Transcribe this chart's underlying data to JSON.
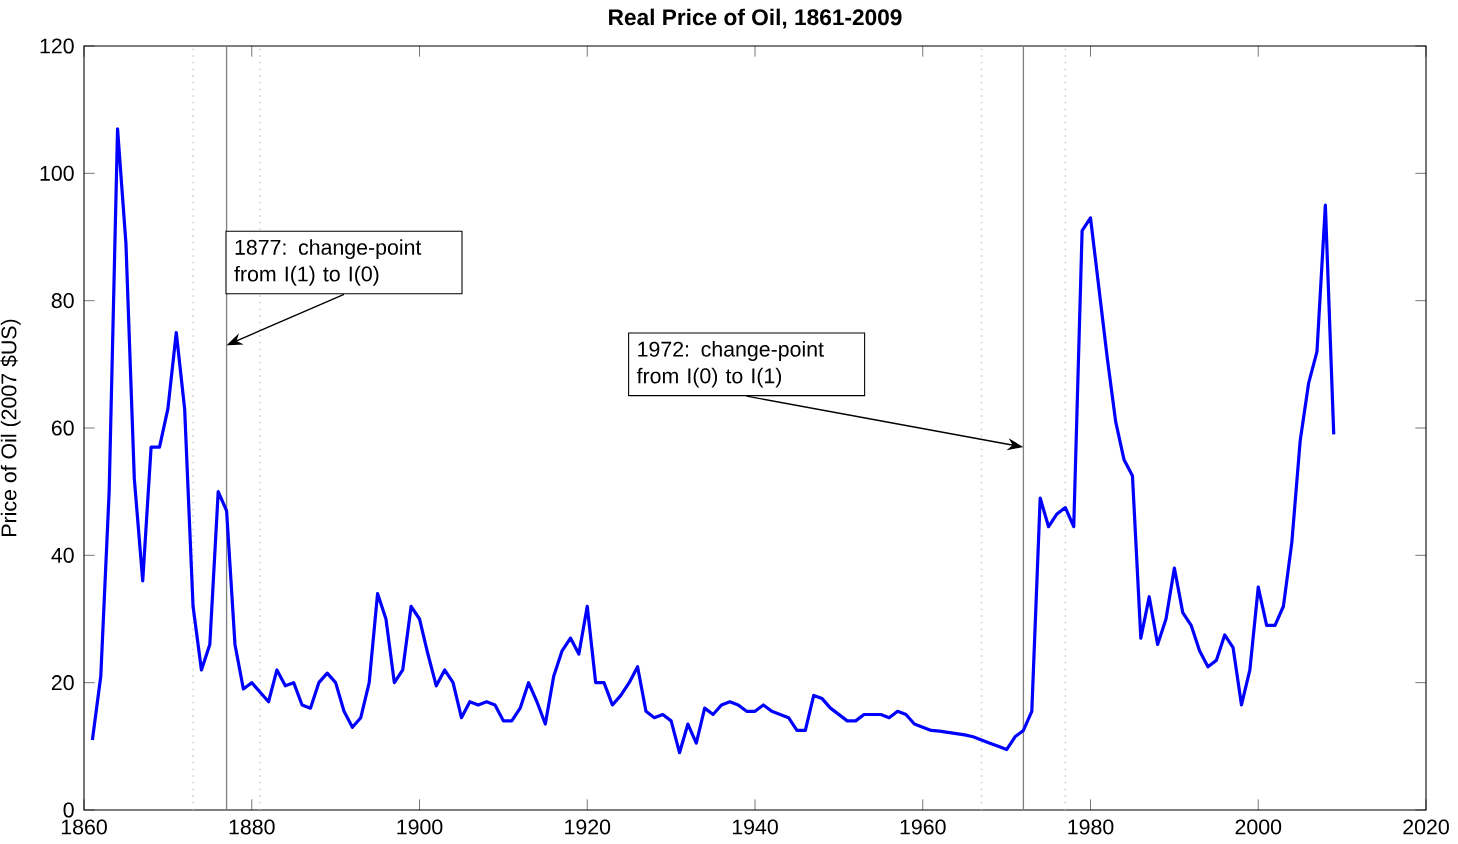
{
  "chart_data": {
    "type": "line",
    "title": "Real Price of Oil, 1861-2009",
    "ylabel": "Price of Oil (2007 $US)",
    "x": [
      1861,
      1862,
      1863,
      1864,
      1865,
      1866,
      1867,
      1868,
      1869,
      1870,
      1871,
      1872,
      1873,
      1874,
      1875,
      1876,
      1877,
      1878,
      1879,
      1880,
      1881,
      1882,
      1883,
      1884,
      1885,
      1886,
      1887,
      1888,
      1889,
      1890,
      1891,
      1892,
      1893,
      1894,
      1895,
      1896,
      1897,
      1898,
      1899,
      1900,
      1901,
      1902,
      1903,
      1904,
      1905,
      1906,
      1907,
      1908,
      1909,
      1910,
      1911,
      1912,
      1913,
      1914,
      1915,
      1916,
      1917,
      1918,
      1919,
      1920,
      1921,
      1922,
      1923,
      1924,
      1925,
      1926,
      1927,
      1928,
      1929,
      1930,
      1931,
      1932,
      1933,
      1934,
      1935,
      1936,
      1937,
      1938,
      1939,
      1940,
      1941,
      1942,
      1943,
      1944,
      1945,
      1946,
      1947,
      1948,
      1949,
      1950,
      1951,
      1952,
      1953,
      1954,
      1955,
      1956,
      1957,
      1958,
      1959,
      1960,
      1961,
      1962,
      1963,
      1964,
      1965,
      1966,
      1967,
      1968,
      1969,
      1970,
      1971,
      1972,
      1973,
      1974,
      1975,
      1976,
      1977,
      1978,
      1979,
      1980,
      1981,
      1982,
      1983,
      1984,
      1985,
      1986,
      1987,
      1988,
      1989,
      1990,
      1991,
      1992,
      1993,
      1994,
      1995,
      1996,
      1997,
      1998,
      1999,
      2000,
      2001,
      2002,
      2003,
      2004,
      2005,
      2006,
      2007,
      2008,
      2009
    ],
    "series": [
      {
        "color": "#0000ff",
        "values": [
          11,
          21,
          50,
          107,
          89,
          52,
          36,
          57,
          57,
          63,
          75,
          63,
          32,
          22,
          26,
          50,
          47,
          26,
          19,
          20,
          18.5,
          17,
          22,
          19.5,
          20,
          16.5,
          16,
          20,
          21.5,
          20,
          15.5,
          13,
          14.5,
          20,
          34,
          30,
          20,
          22,
          32,
          30,
          24.5,
          19.5,
          22,
          20,
          14.5,
          17,
          16.5,
          17,
          16.5,
          14,
          14,
          16,
          20,
          17,
          13.5,
          21,
          25,
          27,
          24.5,
          32,
          20,
          20,
          16.5,
          18,
          20,
          22.5,
          15.5,
          14.5,
          15,
          14,
          9,
          13.5,
          10.5,
          16,
          15,
          16.5,
          17,
          16.5,
          15.5,
          15.5,
          16.5,
          15.5,
          15,
          14.5,
          12.5,
          12.5,
          18,
          17.5,
          16,
          15,
          14,
          14,
          15,
          15,
          15,
          14.5,
          15.5,
          15,
          13.5,
          13,
          12.5,
          12.4,
          12.2,
          12,
          11.8,
          11.5,
          11,
          10.5,
          10,
          9.5,
          11.5,
          12.5,
          15.5,
          49,
          44.5,
          46.5,
          47.5,
          44.5,
          91,
          93,
          82,
          71,
          61,
          55,
          52.5,
          27,
          33.5,
          26,
          30,
          38,
          31,
          29,
          25,
          22.5,
          23.5,
          27.5,
          25.5,
          16.5,
          22,
          35,
          29,
          29,
          32,
          42,
          58,
          67,
          72,
          95,
          59
        ]
      }
    ],
    "xlim": [
      1860,
      2020
    ],
    "xticks": [
      1860,
      1880,
      1900,
      1920,
      1940,
      1960,
      1980,
      2000,
      2020
    ],
    "ylim": [
      0,
      120
    ],
    "yticks": [
      0,
      20,
      40,
      60,
      80,
      100,
      120
    ],
    "grid": false,
    "marker": "none",
    "line_style": "solid",
    "ref_lines": [
      {
        "axis": "x",
        "value": 1877,
        "color": "#808080",
        "line_style": "solid"
      },
      {
        "axis": "x",
        "value": 1972,
        "color": "#808080",
        "line_style": "solid"
      },
      {
        "axis": "x",
        "value": 1873,
        "color": "#c0c0c0",
        "line_style": "dotted"
      },
      {
        "axis": "x",
        "value": 1881,
        "color": "#c0c0c0",
        "line_style": "dotted"
      },
      {
        "axis": "x",
        "value": 1967,
        "color": "#c0c0c0",
        "line_style": "dotted"
      },
      {
        "axis": "x",
        "value": 1977,
        "color": "#c0c0c0",
        "line_style": "dotted"
      }
    ],
    "annotations": [
      {
        "text": "1877: change-point from I(1) to I(0)",
        "x": 1877,
        "y": 73
      },
      {
        "text": "1972: change-point from I(0) to I(1)",
        "x": 1972,
        "y": 57
      }
    ]
  }
}
